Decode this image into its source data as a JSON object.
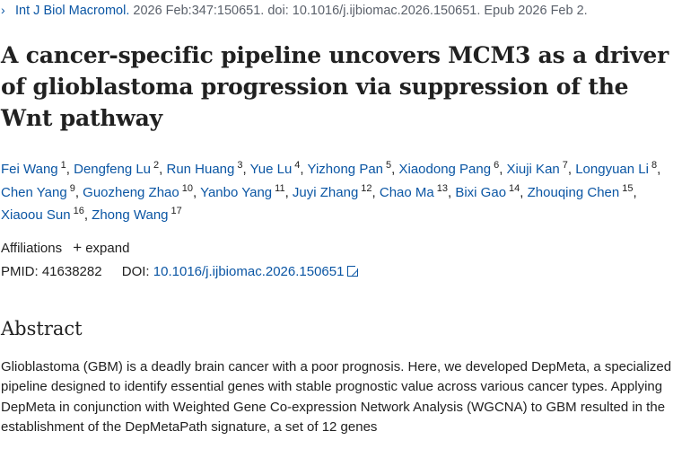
{
  "citation": {
    "journal": "Int J Biol Macromol.",
    "details": "2026 Feb:347:150651. doi: 10.1016/j.ijbiomac.2026.150651. Epub 2026 Feb 2."
  },
  "title": "A cancer-specific pipeline uncovers MCM3 as a driver of glioblastoma progression via suppression of the Wnt pathway",
  "authors": [
    {
      "name": "Fei Wang",
      "num": "1"
    },
    {
      "name": "Dengfeng Lu",
      "num": "2"
    },
    {
      "name": "Run Huang",
      "num": "3"
    },
    {
      "name": "Yue Lu",
      "num": "4"
    },
    {
      "name": "Yizhong Pan",
      "num": "5"
    },
    {
      "name": "Xiaodong Pang",
      "num": "6"
    },
    {
      "name": "Xiuji Kan",
      "num": "7"
    },
    {
      "name": "Longyuan Li",
      "num": "8"
    },
    {
      "name": "Chen Yang",
      "num": "9"
    },
    {
      "name": "Guozheng Zhao",
      "num": "10"
    },
    {
      "name": "Yanbo Yang",
      "num": "11"
    },
    {
      "name": "Juyi Zhang",
      "num": "12"
    },
    {
      "name": "Chao Ma",
      "num": "13"
    },
    {
      "name": "Bixi Gao",
      "num": "14"
    },
    {
      "name": "Zhouqing Chen",
      "num": "15"
    },
    {
      "name": "Xiaoou Sun",
      "num": "16"
    },
    {
      "name": "Zhong Wang",
      "num": "17"
    }
  ],
  "affiliations": {
    "label": "Affiliations",
    "expand_label": "expand"
  },
  "ids": {
    "pmid_label": "PMID:",
    "pmid": "41638282",
    "doi_label": "DOI:",
    "doi": "10.1016/j.ijbiomac.2026.150651"
  },
  "abstract": {
    "heading": "Abstract",
    "text": "Glioblastoma (GBM) is a deadly brain cancer with a poor prognosis. Here, we developed DepMeta, a specialized pipeline designed to identify essential genes with stable prognostic value across various cancer types. Applying DepMeta in conjunction with Weighted Gene Co-expression Network Analysis (WGCNA) to GBM resulted in the establishment of the DepMetaPath signature, a set of 12 genes"
  },
  "icons": {
    "citation": "chevron-right-icon",
    "expand": "plus-icon",
    "doi": "external-link-icon"
  }
}
